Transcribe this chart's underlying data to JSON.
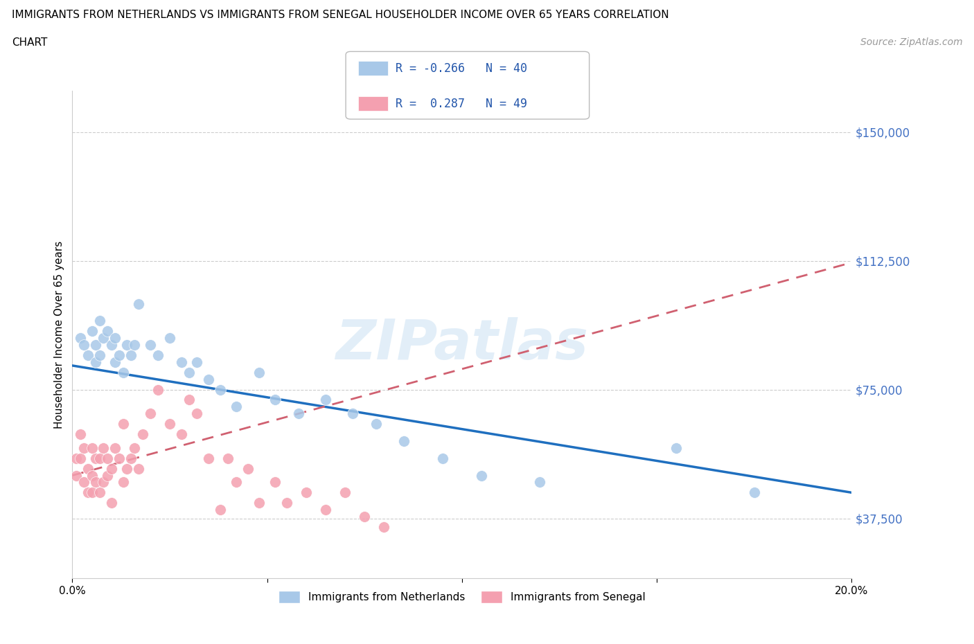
{
  "title_line1": "IMMIGRANTS FROM NETHERLANDS VS IMMIGRANTS FROM SENEGAL HOUSEHOLDER INCOME OVER 65 YEARS CORRELATION",
  "title_line2": "CHART",
  "source": "Source: ZipAtlas.com",
  "ylabel": "Householder Income Over 65 years",
  "legend_bottom": [
    "Immigrants from Netherlands",
    "Immigrants from Senegal"
  ],
  "r_netherlands": -0.266,
  "n_netherlands": 40,
  "r_senegal": 0.287,
  "n_senegal": 49,
  "xmin": 0.0,
  "xmax": 0.2,
  "ymin": 20000,
  "ymax": 162000,
  "yticks": [
    37500,
    75000,
    112500,
    150000
  ],
  "ytick_labels": [
    "$37,500",
    "$75,000",
    "$112,500",
    "$150,000"
  ],
  "xticks": [
    0.0,
    0.05,
    0.1,
    0.15,
    0.2
  ],
  "xtick_labels": [
    "0.0%",
    "",
    "",
    "",
    "20.0%"
  ],
  "color_netherlands": "#a8c8e8",
  "color_senegal": "#f4a0b0",
  "trendline_netherlands_color": "#1f6fbf",
  "trendline_senegal_color": "#d06070",
  "background_color": "#ffffff",
  "watermark": "ZIPatlas",
  "netherlands_x": [
    0.002,
    0.003,
    0.004,
    0.005,
    0.006,
    0.006,
    0.007,
    0.007,
    0.008,
    0.009,
    0.01,
    0.011,
    0.011,
    0.012,
    0.013,
    0.014,
    0.015,
    0.016,
    0.017,
    0.02,
    0.022,
    0.025,
    0.028,
    0.03,
    0.032,
    0.035,
    0.038,
    0.042,
    0.048,
    0.052,
    0.058,
    0.065,
    0.072,
    0.078,
    0.085,
    0.095,
    0.105,
    0.12,
    0.155,
    0.175
  ],
  "netherlands_y": [
    90000,
    88000,
    85000,
    92000,
    88000,
    83000,
    95000,
    85000,
    90000,
    92000,
    88000,
    90000,
    83000,
    85000,
    80000,
    88000,
    85000,
    88000,
    100000,
    88000,
    85000,
    90000,
    83000,
    80000,
    83000,
    78000,
    75000,
    70000,
    80000,
    72000,
    68000,
    72000,
    68000,
    65000,
    60000,
    55000,
    50000,
    48000,
    58000,
    45000
  ],
  "senegal_x": [
    0.001,
    0.001,
    0.002,
    0.002,
    0.003,
    0.003,
    0.004,
    0.004,
    0.005,
    0.005,
    0.005,
    0.006,
    0.006,
    0.007,
    0.007,
    0.008,
    0.008,
    0.009,
    0.009,
    0.01,
    0.01,
    0.011,
    0.012,
    0.013,
    0.013,
    0.014,
    0.015,
    0.016,
    0.017,
    0.018,
    0.02,
    0.022,
    0.025,
    0.028,
    0.03,
    0.032,
    0.035,
    0.038,
    0.04,
    0.042,
    0.045,
    0.048,
    0.052,
    0.055,
    0.06,
    0.065,
    0.07,
    0.075,
    0.08
  ],
  "senegal_y": [
    55000,
    50000,
    62000,
    55000,
    58000,
    48000,
    52000,
    45000,
    58000,
    50000,
    45000,
    55000,
    48000,
    55000,
    45000,
    58000,
    48000,
    55000,
    50000,
    52000,
    42000,
    58000,
    55000,
    65000,
    48000,
    52000,
    55000,
    58000,
    52000,
    62000,
    68000,
    75000,
    65000,
    62000,
    72000,
    68000,
    55000,
    40000,
    55000,
    48000,
    52000,
    42000,
    48000,
    42000,
    45000,
    40000,
    45000,
    38000,
    35000
  ]
}
